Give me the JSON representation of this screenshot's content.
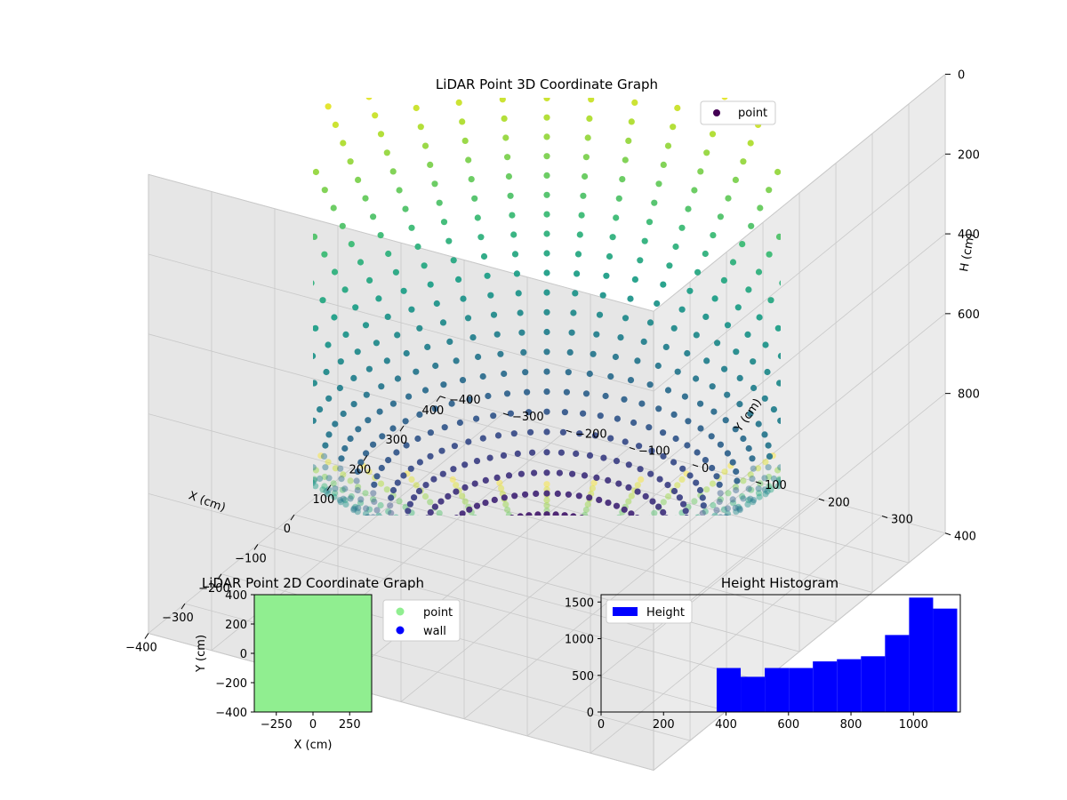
{
  "figure": {
    "title3d": "LiDAR Point 3D Coordinate Graph",
    "title2d": "LiDAR Point 2D Coordinate Graph",
    "titleHist": "Height Histogram"
  },
  "chart_data": [
    {
      "type": "scatter",
      "projection": "3d",
      "title": "LiDAR Point 3D Coordinate Graph",
      "xlabel": "X (cm)",
      "ylabel": "Y (cm)",
      "zlabel": "H (cm)",
      "xlim": [
        -400,
        400
      ],
      "ylim": [
        -400,
        400
      ],
      "zlim": [
        0,
        1150
      ],
      "z_inverted": true,
      "x_ticks": [
        "−400",
        "−300",
        "−200",
        "−100",
        "0",
        "100",
        "200",
        "300",
        "400"
      ],
      "y_ticks": [
        "−400",
        "−300",
        "−200",
        "−100",
        "0",
        "100",
        "200",
        "300",
        "400"
      ],
      "z_ticks": [
        "0",
        "200",
        "400",
        "600",
        "800"
      ],
      "colormap": "viridis",
      "legend": {
        "position": "top-right",
        "entries": [
          {
            "name": "point",
            "color": "#440154"
          }
        ]
      },
      "series": [
        {
          "name": "point",
          "shape": "bowl",
          "rings": 26,
          "points_per_ring": 60,
          "h_min": 370,
          "h_max": 1140
        }
      ]
    },
    {
      "type": "scatter",
      "title": "LiDAR Point 2D Coordinate Graph",
      "xlabel": "X (cm)",
      "ylabel": "Y (cm)",
      "xlim": [
        -400,
        400
      ],
      "ylim": [
        -400,
        400
      ],
      "x_ticks": [
        "−250",
        "0",
        "250"
      ],
      "y_ticks": [
        "400",
        "200",
        "0",
        "−200",
        "−400"
      ],
      "legend": {
        "position": "outside-right",
        "entries": [
          {
            "name": "point",
            "color": "#90ee90"
          },
          {
            "name": "wall",
            "color": "#0000ff"
          }
        ]
      },
      "fill_color": "#90ee90"
    },
    {
      "type": "bar",
      "title": "Height Histogram",
      "xlabel": "",
      "ylabel": "",
      "xlim": [
        0,
        1150
      ],
      "ylim": [
        0,
        1600
      ],
      "x_ticks": [
        "0",
        "200",
        "400",
        "600",
        "800",
        "1000"
      ],
      "y_ticks": [
        "0",
        "500",
        "1000",
        "1500"
      ],
      "color": "#0000ff",
      "legend": {
        "position": "top-left",
        "entries": [
          {
            "name": "Height",
            "color": "#0000ff"
          }
        ]
      },
      "bins": [
        {
          "x0": 370,
          "x1": 447,
          "count": 600
        },
        {
          "x0": 447,
          "x1": 524,
          "count": 480
        },
        {
          "x0": 524,
          "x1": 601,
          "count": 600
        },
        {
          "x0": 601,
          "x1": 678,
          "count": 600
        },
        {
          "x0": 678,
          "x1": 755,
          "count": 690
        },
        {
          "x0": 755,
          "x1": 832,
          "count": 720
        },
        {
          "x0": 832,
          "x1": 909,
          "count": 760
        },
        {
          "x0": 909,
          "x1": 986,
          "count": 1050
        },
        {
          "x0": 986,
          "x1": 1063,
          "count": 1560
        },
        {
          "x0": 1063,
          "x1": 1140,
          "count": 1410
        }
      ]
    }
  ]
}
